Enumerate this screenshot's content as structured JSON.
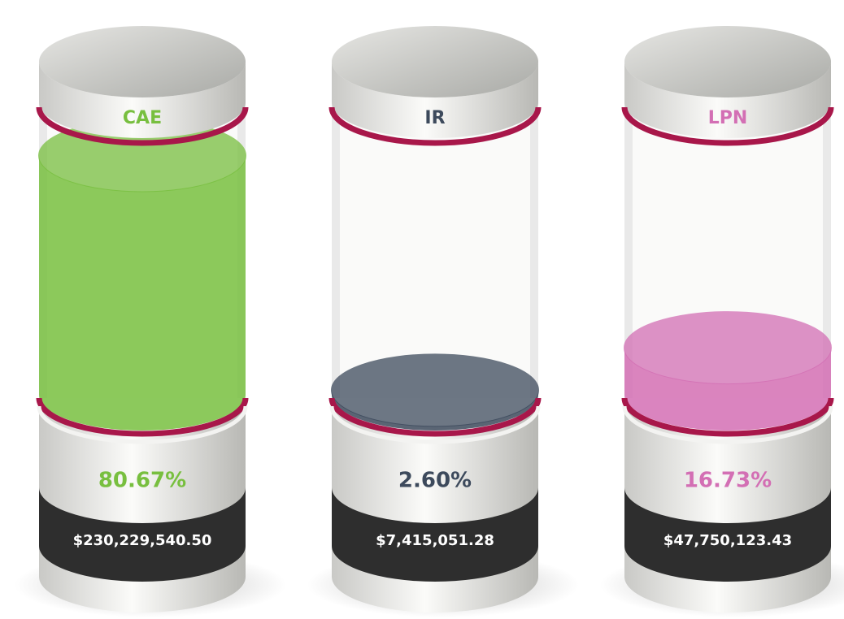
{
  "chart_data": {
    "type": "cylinder",
    "categories": [
      "CAE",
      "IR",
      "LPN"
    ],
    "values": [
      80.67,
      2.6,
      16.73
    ],
    "value_labels": [
      "80.67%",
      "2.60%",
      "16.73%"
    ],
    "amounts": [
      230229540.5,
      7415051.28,
      47750123.43
    ],
    "amount_labels": [
      "$230,229,540.50",
      "$7,415,051.28",
      "$47,750,123.43"
    ],
    "colors": [
      "#78bf3f",
      "#3d4a5c",
      "#d36fb4"
    ]
  }
}
